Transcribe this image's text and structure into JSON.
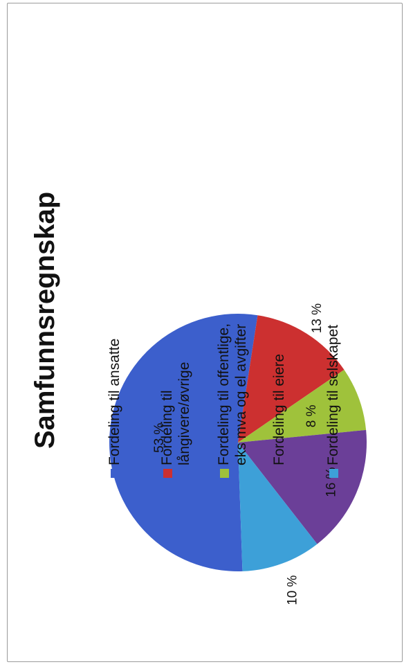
{
  "chart_data": {
    "type": "pie",
    "title": "Samfunnsregnskap",
    "categories": [
      "Fordeling til ansatte",
      "Fordeling til långivere/øvrige",
      "Fordeling til offentlige, eks mva og el avgifter",
      "Fordeling til eiere",
      "Fordeling til selskapet"
    ],
    "legend_lines": [
      [
        "Fordeling til ansatte"
      ],
      [
        "Fordeling til",
        "långivere/øvrige"
      ],
      [
        "Fordeling til offentlige,",
        "eks mva og el avgifter"
      ],
      [
        "Fordeling til eiere"
      ],
      [
        "Fordeling til selskapet"
      ]
    ],
    "values": [
      53,
      13,
      8,
      16,
      10
    ],
    "data_labels": [
      "53 %",
      "13 %",
      "8 %",
      "16 %",
      "10 %"
    ],
    "colors": [
      "#3c5fcc",
      "#cc3030",
      "#9fc23b",
      "#6b3f98",
      "#3da0d8"
    ],
    "legend_placement": "right",
    "rotation": "page-rotated-90-ccw"
  }
}
